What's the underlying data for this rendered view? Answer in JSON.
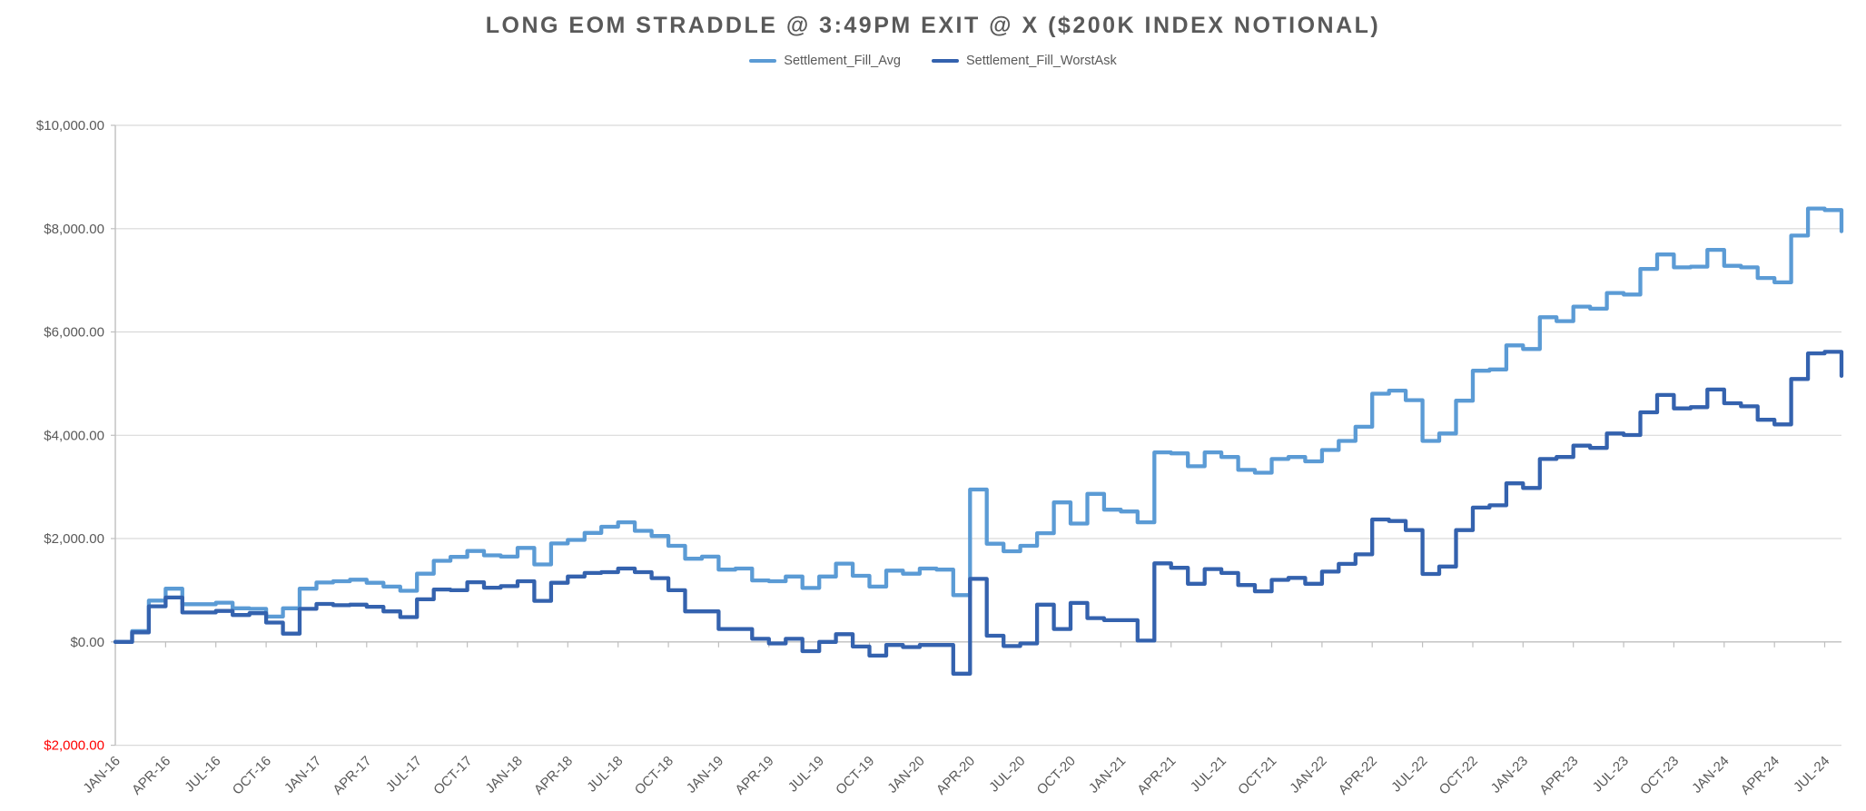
{
  "chart_data": {
    "type": "line",
    "title": "LONG EOM STRADDLE @ 3:49PM EXIT @ X ($200K INDEX NOTIONAL)",
    "xlabel": "",
    "ylabel": "",
    "ylim": [
      -2000,
      10000
    ],
    "ytick_step": 2000,
    "grid": true,
    "legend_position": "top-center",
    "line_style": "step-after",
    "y_labels": [
      {
        "text": "$10,000.00",
        "red": false
      },
      {
        "text": "$8,000.00",
        "red": false
      },
      {
        "text": "$6,000.00",
        "red": false
      },
      {
        "text": "$4,000.00",
        "red": false
      },
      {
        "text": "$2,000.00",
        "red": false
      },
      {
        "text": "$0.00",
        "red": false
      },
      {
        "text": "$2,000.00",
        "red": true
      }
    ],
    "x_tick_every": 3,
    "categories": [
      "JAN-16",
      "FEB-16",
      "MAR-16",
      "APR-16",
      "MAY-16",
      "JUN-16",
      "JUL-16",
      "AUG-16",
      "SEP-16",
      "OCT-16",
      "NOV-16",
      "DEC-16",
      "JAN-17",
      "FEB-17",
      "MAR-17",
      "APR-17",
      "MAY-17",
      "JUN-17",
      "JUL-17",
      "AUG-17",
      "SEP-17",
      "OCT-17",
      "NOV-17",
      "DEC-17",
      "JAN-18",
      "FEB-18",
      "MAR-18",
      "APR-18",
      "MAY-18",
      "JUN-18",
      "JUL-18",
      "AUG-18",
      "SEP-18",
      "OCT-18",
      "NOV-18",
      "DEC-18",
      "JAN-19",
      "FEB-19",
      "MAR-19",
      "APR-19",
      "MAY-19",
      "JUN-19",
      "JUL-19",
      "AUG-19",
      "SEP-19",
      "OCT-19",
      "NOV-19",
      "DEC-19",
      "JAN-20",
      "FEB-20",
      "MAR-20",
      "APR-20",
      "MAY-20",
      "JUN-20",
      "JUL-20",
      "AUG-20",
      "SEP-20",
      "OCT-20",
      "NOV-20",
      "DEC-20",
      "JAN-21",
      "FEB-21",
      "MAR-21",
      "APR-21",
      "MAY-21",
      "JUN-21",
      "JUL-21",
      "AUG-21",
      "SEP-21",
      "OCT-21",
      "NOV-21",
      "DEC-21",
      "JAN-22",
      "FEB-22",
      "MAR-22",
      "APR-22",
      "MAY-22",
      "JUN-22",
      "JUL-22",
      "AUG-22",
      "SEP-22",
      "OCT-22",
      "NOV-22",
      "DEC-22",
      "JAN-23",
      "FEB-23",
      "MAR-23",
      "APR-23",
      "MAY-23",
      "JUN-23",
      "JUL-23",
      "AUG-23",
      "SEP-23",
      "OCT-23",
      "NOV-23",
      "DEC-23",
      "JAN-24",
      "FEB-24",
      "MAR-24",
      "APR-24",
      "MAY-24",
      "JUN-24",
      "JUL-24",
      "AUG-24"
    ],
    "series": [
      {
        "id": "settlement-fill-avg",
        "name": "Settlement_Fill_Avg",
        "color": "#5B9BD5",
        "values": [
          0,
          210,
          800,
          1030,
          730,
          730,
          760,
          650,
          640,
          490,
          650,
          1030,
          1150,
          1175,
          1205,
          1145,
          1070,
          990,
          1320,
          1570,
          1645,
          1760,
          1675,
          1650,
          1820,
          1500,
          1905,
          1975,
          2110,
          2230,
          2315,
          2150,
          2050,
          1860,
          1610,
          1650,
          1400,
          1420,
          1190,
          1175,
          1265,
          1045,
          1265,
          1515,
          1280,
          1070,
          1380,
          1320,
          1420,
          1400,
          905,
          2950,
          1900,
          1755,
          1860,
          2105,
          2700,
          2290,
          2865,
          2560,
          2525,
          2315,
          3670,
          3650,
          3400,
          3670,
          3580,
          3330,
          3275,
          3540,
          3580,
          3495,
          3715,
          3890,
          4165,
          4805,
          4865,
          4680,
          3890,
          4035,
          4670,
          5250,
          5275,
          5740,
          5670,
          6285,
          6210,
          6490,
          6450,
          6755,
          6725,
          7220,
          7500,
          7250,
          7265,
          7590,
          7280,
          7250,
          7045,
          6960,
          7865,
          8390,
          8360,
          7950
        ]
      },
      {
        "id": "settlement-fill-worstask",
        "name": "Settlement_Fill_WorstAsk",
        "color": "#3462AE",
        "values": [
          0,
          185,
          690,
          860,
          570,
          570,
          600,
          520,
          555,
          375,
          160,
          640,
          735,
          710,
          720,
          680,
          590,
          480,
          825,
          1015,
          1000,
          1155,
          1050,
          1080,
          1175,
          795,
          1145,
          1265,
          1335,
          1350,
          1420,
          1350,
          1235,
          1000,
          590,
          590,
          250,
          250,
          60,
          -30,
          60,
          -180,
          0,
          150,
          -90,
          -265,
          -60,
          -100,
          -60,
          -60,
          -615,
          1220,
          120,
          -80,
          -30,
          720,
          250,
          755,
          460,
          420,
          420,
          25,
          1520,
          1435,
          1125,
          1410,
          1335,
          1100,
          980,
          1200,
          1240,
          1125,
          1360,
          1510,
          1695,
          2370,
          2340,
          2165,
          1315,
          1460,
          2165,
          2600,
          2645,
          3070,
          2980,
          3540,
          3580,
          3800,
          3755,
          4035,
          4005,
          4445,
          4780,
          4520,
          4545,
          4885,
          4620,
          4560,
          4300,
          4210,
          5090,
          5585,
          5615,
          5150
        ]
      }
    ],
    "colors": {
      "grid": "#D9D9D9",
      "axis": "#BFBFBF",
      "axis_text": "#595959",
      "negative_text": "#FF0000",
      "title_text": "#595959"
    }
  }
}
